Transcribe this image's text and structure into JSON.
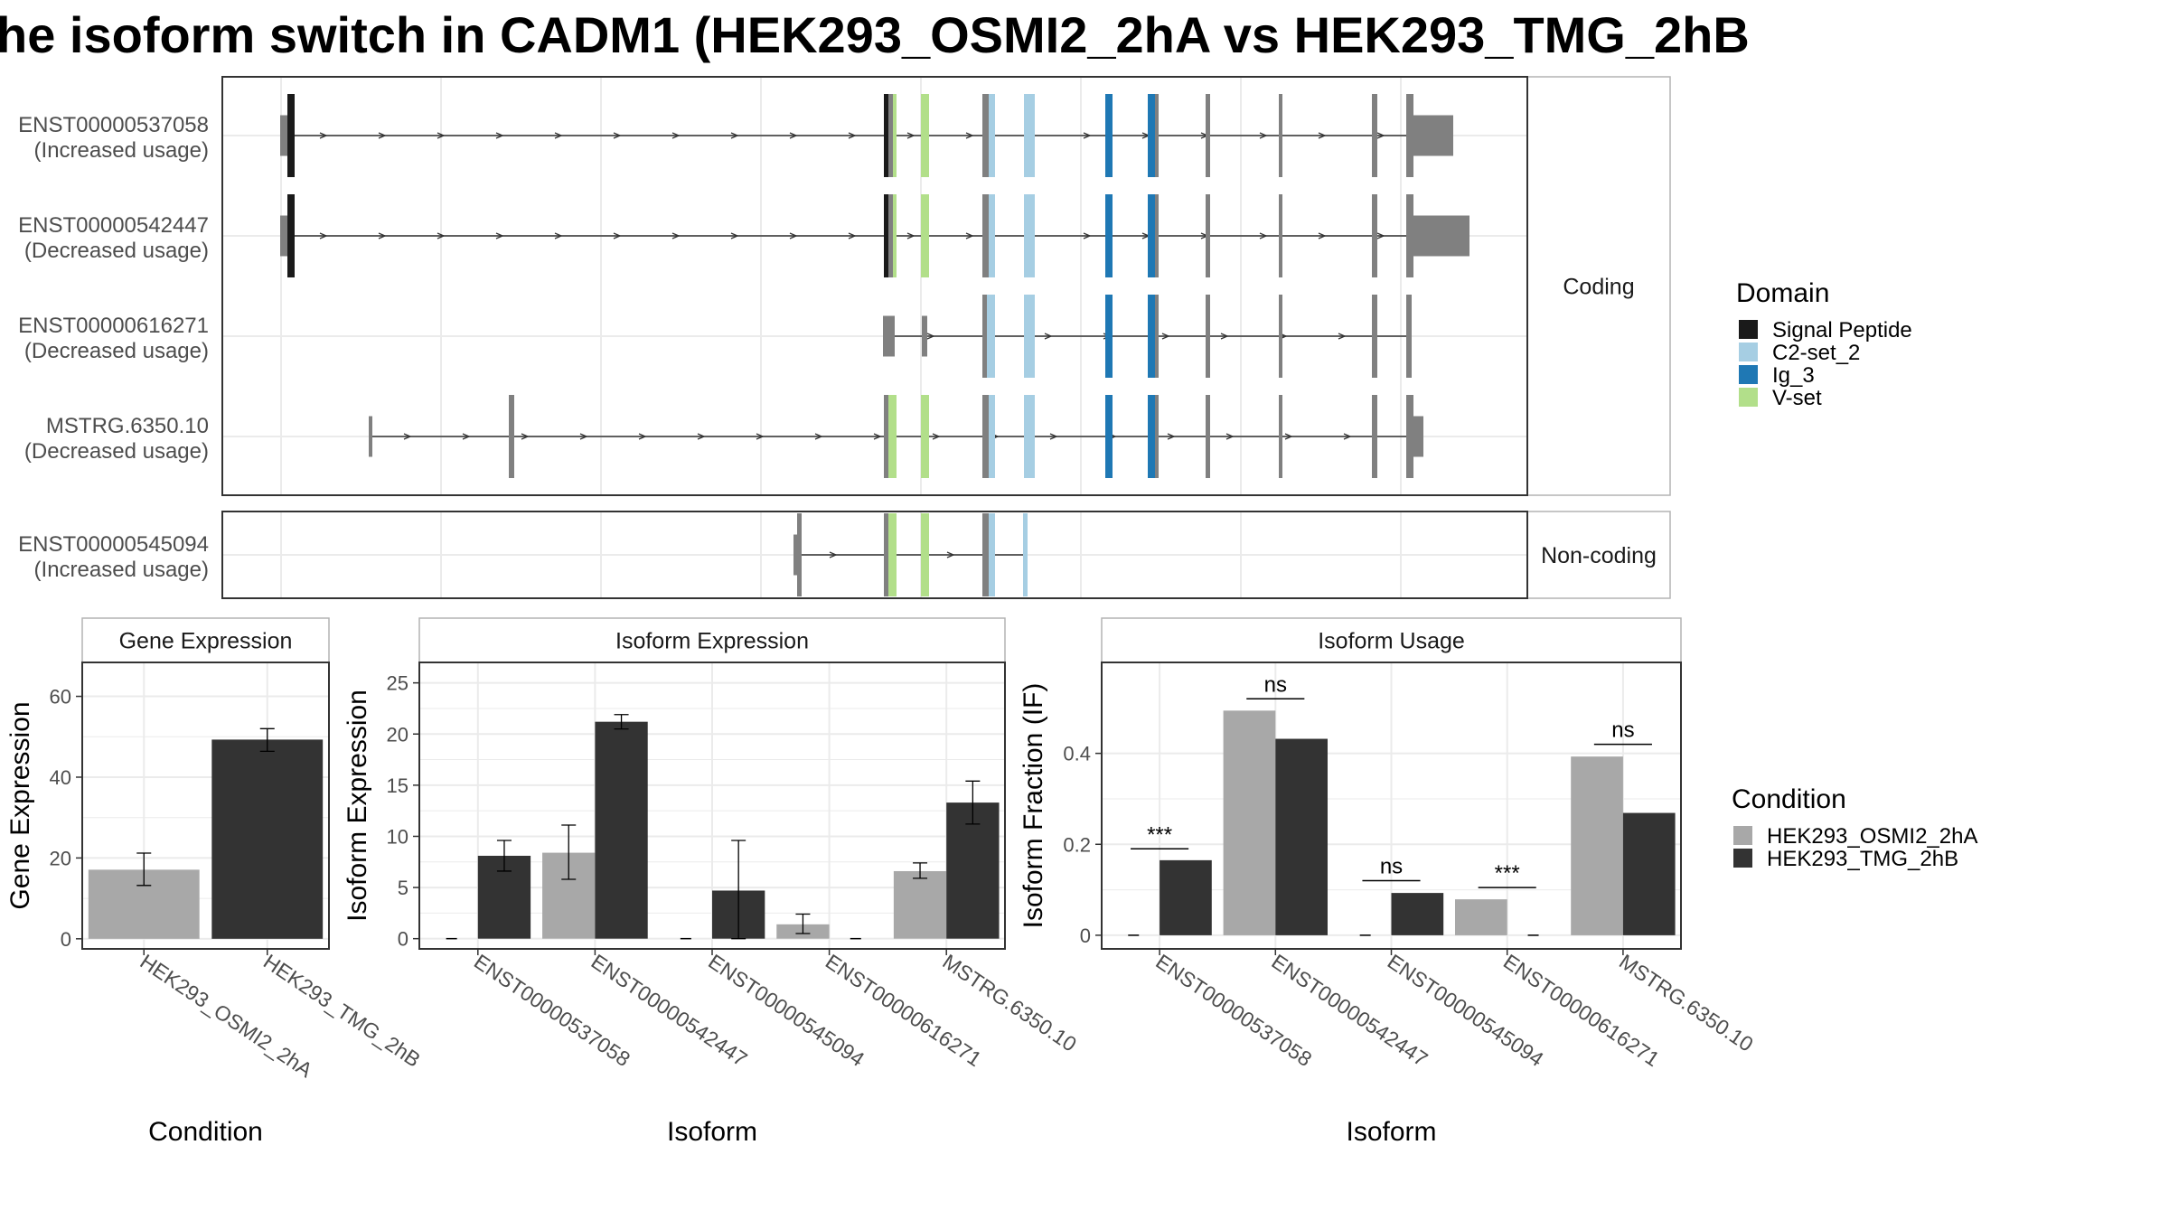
{
  "title": "he isoform switch in CADM1 (HEK293_OSMI2_2hA vs HEK293_TMG_2hB",
  "colors": {
    "signal_peptide": "#1a1a1a",
    "c2_set_2": "#a6cee3",
    "ig_3": "#1f78b4",
    "v_set": "#b2df8a",
    "exon": "#808080",
    "cond_a": "#a8a8a8",
    "cond_b": "#333333",
    "grid": "#ebebeb",
    "panel_border": "#333333",
    "strip_border": "#b3b3b3"
  },
  "structure": {
    "groups": [
      {
        "label": "Coding",
        "rows": [
          {
            "id": "ENST00000537058",
            "usage": "(Increased usage)"
          },
          {
            "id": "ENST00000542447",
            "usage": "(Decreased usage)"
          },
          {
            "id": "ENST00000616271",
            "usage": "(Decreased usage)"
          },
          {
            "id": "MSTRG.6350.10",
            "usage": "(Decreased usage)"
          }
        ]
      },
      {
        "label": "Non-coding",
        "rows": [
          {
            "id": "ENST00000545094",
            "usage": "(Increased usage)"
          }
        ]
      }
    ]
  },
  "domain_legend": {
    "title": "Domain",
    "items": [
      {
        "label": "Signal Peptide",
        "color": "#1a1a1a"
      },
      {
        "label": "C2-set_2",
        "color": "#a6cee3"
      },
      {
        "label": "Ig_3",
        "color": "#1f78b4"
      },
      {
        "label": "V-set",
        "color": "#b2df8a"
      }
    ]
  },
  "condition_legend": {
    "title": "Condition",
    "items": [
      {
        "label": "HEK293_OSMI2_2hA",
        "color": "#a8a8a8"
      },
      {
        "label": "HEK293_TMG_2hB",
        "color": "#333333"
      }
    ]
  },
  "chart_data": [
    {
      "type": "bar",
      "title": "Gene Expression",
      "xlabel": "Condition",
      "ylabel": "Gene Expression",
      "categories": [
        "HEK293_OSMI2_2hA",
        "HEK293_TMG_2hB"
      ],
      "values": [
        17.1,
        49.3
      ],
      "error_low": [
        13.2,
        46.4
      ],
      "error_high": [
        21.2,
        52.0
      ],
      "yticks": [
        0,
        20,
        40,
        60
      ],
      "ylim": [
        -2.5,
        68.4
      ]
    },
    {
      "type": "bar",
      "title": "Isoform Expression",
      "xlabel": "Isoform",
      "ylabel": "Isoform Expression",
      "categories": [
        "ENST00000537058",
        "ENST00000542447",
        "ENST00000545094",
        "ENST00000616271",
        "MSTRG.6350.10"
      ],
      "series": [
        {
          "name": "HEK293_OSMI2_2hA",
          "values": [
            0.0,
            8.4,
            0.0,
            1.4,
            6.6
          ],
          "error_low": [
            0.0,
            5.8,
            0.0,
            0.5,
            5.9
          ],
          "error_high": [
            0.0,
            11.1,
            0.0,
            2.4,
            7.4
          ]
        },
        {
          "name": "HEK293_TMG_2hB",
          "values": [
            8.1,
            21.2,
            4.7,
            0.0,
            13.3
          ],
          "error_low": [
            6.6,
            20.5,
            0.0,
            0.0,
            11.2
          ],
          "error_high": [
            9.6,
            21.9,
            9.6,
            0.0,
            15.4
          ]
        }
      ],
      "yticks": [
        0,
        5,
        10,
        15,
        20,
        25
      ],
      "ylim": [
        -1.0,
        27.0
      ]
    },
    {
      "type": "bar",
      "title": "Isoform Usage",
      "xlabel": "Isoform",
      "ylabel": "Isoform Fraction (IF)",
      "categories": [
        "ENST00000537058",
        "ENST00000542447",
        "ENST00000545094",
        "ENST00000616271",
        "MSTRG.6350.10"
      ],
      "series": [
        {
          "name": "HEK293_OSMI2_2hA",
          "values": [
            0.0,
            0.494,
            0.0,
            0.079,
            0.393
          ]
        },
        {
          "name": "HEK293_TMG_2hB",
          "values": [
            0.165,
            0.432,
            0.093,
            0.0,
            0.269
          ]
        }
      ],
      "significance": [
        {
          "category": "ENST00000537058",
          "label": "***",
          "y": 0.19
        },
        {
          "category": "ENST00000542447",
          "label": "ns",
          "y": 0.52
        },
        {
          "category": "ENST00000545094",
          "label": "ns",
          "y": 0.12
        },
        {
          "category": "ENST00000616271",
          "label": "***",
          "y": 0.105
        },
        {
          "category": "MSTRG.6350.10",
          "label": "ns",
          "y": 0.42
        }
      ],
      "yticks": [
        0.0,
        0.2,
        0.4
      ],
      "ylim": [
        -0.03,
        0.6
      ]
    }
  ]
}
